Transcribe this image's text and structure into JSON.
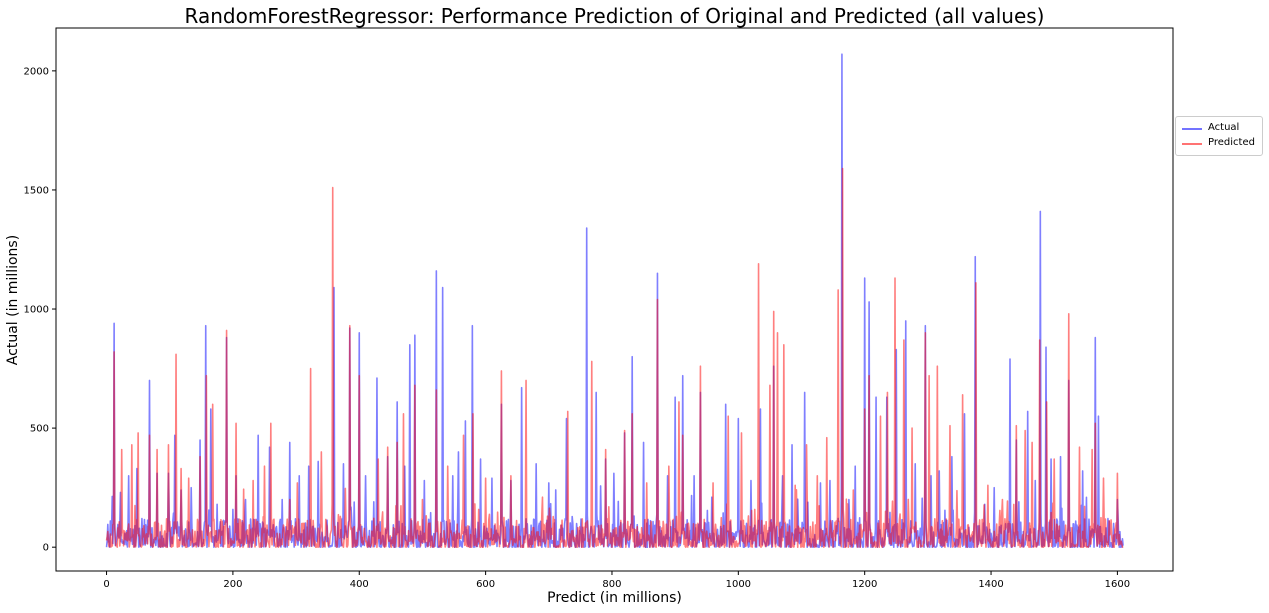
{
  "chart_data": {
    "type": "line",
    "title": "RandomForestRegressor: Performance Prediction of Original and Predicted (all values)",
    "xlabel": "Predict (in millions)",
    "ylabel": "Actual (in millions)",
    "xlim": [
      -80,
      1688
    ],
    "ylim": [
      -100,
      2180
    ],
    "x_ticks": [
      0,
      200,
      400,
      600,
      800,
      1000,
      1200,
      1400,
      1600
    ],
    "y_ticks": [
      0,
      500,
      1000,
      1500,
      2000
    ],
    "legend_placement": "right, outside plot",
    "baseline_max": 120,
    "series_length": 1610,
    "series": [
      {
        "name": "Actual",
        "color": "#0000ff",
        "peaks": [
          [
            12,
            940
          ],
          [
            22,
            230
          ],
          [
            35,
            300
          ],
          [
            48,
            330
          ],
          [
            68,
            700
          ],
          [
            80,
            310
          ],
          [
            98,
            310
          ],
          [
            108,
            470
          ],
          [
            118,
            240
          ],
          [
            134,
            250
          ],
          [
            148,
            450
          ],
          [
            157,
            930
          ],
          [
            165,
            580
          ],
          [
            175,
            180
          ],
          [
            190,
            880
          ],
          [
            205,
            300
          ],
          [
            220,
            200
          ],
          [
            240,
            470
          ],
          [
            258,
            420
          ],
          [
            278,
            200
          ],
          [
            290,
            440
          ],
          [
            305,
            300
          ],
          [
            320,
            340
          ],
          [
            335,
            360
          ],
          [
            360,
            1090
          ],
          [
            375,
            350
          ],
          [
            385,
            920
          ],
          [
            400,
            900
          ],
          [
            410,
            300
          ],
          [
            428,
            710
          ],
          [
            445,
            380
          ],
          [
            460,
            610
          ],
          [
            472,
            340
          ],
          [
            480,
            850
          ],
          [
            488,
            890
          ],
          [
            503,
            280
          ],
          [
            522,
            1160
          ],
          [
            532,
            1090
          ],
          [
            548,
            300
          ],
          [
            557,
            400
          ],
          [
            568,
            530
          ],
          [
            579,
            930
          ],
          [
            592,
            370
          ],
          [
            610,
            290
          ],
          [
            625,
            600
          ],
          [
            640,
            280
          ],
          [
            657,
            670
          ],
          [
            680,
            350
          ],
          [
            700,
            270
          ],
          [
            728,
            540
          ],
          [
            760,
            1340
          ],
          [
            775,
            650
          ],
          [
            790,
            370
          ],
          [
            803,
            310
          ],
          [
            820,
            480
          ],
          [
            832,
            800
          ],
          [
            850,
            440
          ],
          [
            872,
            1150
          ],
          [
            888,
            300
          ],
          [
            900,
            630
          ],
          [
            912,
            720
          ],
          [
            930,
            300
          ],
          [
            940,
            650
          ],
          [
            958,
            210
          ],
          [
            980,
            600
          ],
          [
            1000,
            540
          ],
          [
            1020,
            280
          ],
          [
            1035,
            580
          ],
          [
            1056,
            760
          ],
          [
            1070,
            300
          ],
          [
            1085,
            430
          ],
          [
            1105,
            650
          ],
          [
            1130,
            270
          ],
          [
            1145,
            280
          ],
          [
            1164,
            2070
          ],
          [
            1175,
            200
          ],
          [
            1185,
            340
          ],
          [
            1200,
            1130
          ],
          [
            1207,
            1030
          ],
          [
            1218,
            630
          ],
          [
            1235,
            630
          ],
          [
            1250,
            830
          ],
          [
            1265,
            950
          ],
          [
            1280,
            350
          ],
          [
            1296,
            930
          ],
          [
            1305,
            300
          ],
          [
            1318,
            320
          ],
          [
            1338,
            380
          ],
          [
            1358,
            560
          ],
          [
            1375,
            1220
          ],
          [
            1390,
            180
          ],
          [
            1405,
            250
          ],
          [
            1430,
            790
          ],
          [
            1440,
            450
          ],
          [
            1458,
            570
          ],
          [
            1470,
            280
          ],
          [
            1478,
            1410
          ],
          [
            1487,
            840
          ],
          [
            1495,
            370
          ],
          [
            1510,
            380
          ],
          [
            1523,
            700
          ],
          [
            1545,
            320
          ],
          [
            1565,
            880
          ],
          [
            1570,
            550
          ],
          [
            1585,
            120
          ],
          [
            1600,
            200
          ]
        ]
      },
      {
        "name": "Predicted",
        "color": "#ff0000",
        "peaks": [
          [
            12,
            820
          ],
          [
            24,
            410
          ],
          [
            40,
            430
          ],
          [
            50,
            480
          ],
          [
            68,
            470
          ],
          [
            80,
            410
          ],
          [
            98,
            430
          ],
          [
            110,
            810
          ],
          [
            118,
            330
          ],
          [
            130,
            290
          ],
          [
            148,
            380
          ],
          [
            158,
            720
          ],
          [
            168,
            600
          ],
          [
            190,
            910
          ],
          [
            205,
            520
          ],
          [
            232,
            280
          ],
          [
            250,
            340
          ],
          [
            260,
            520
          ],
          [
            290,
            200
          ],
          [
            302,
            270
          ],
          [
            323,
            750
          ],
          [
            340,
            400
          ],
          [
            358,
            1510
          ],
          [
            385,
            930
          ],
          [
            400,
            720
          ],
          [
            430,
            370
          ],
          [
            445,
            420
          ],
          [
            460,
            440
          ],
          [
            470,
            560
          ],
          [
            488,
            680
          ],
          [
            500,
            200
          ],
          [
            522,
            660
          ],
          [
            540,
            340
          ],
          [
            565,
            470
          ],
          [
            580,
            560
          ],
          [
            600,
            290
          ],
          [
            625,
            740
          ],
          [
            640,
            300
          ],
          [
            664,
            700
          ],
          [
            690,
            210
          ],
          [
            730,
            570
          ],
          [
            768,
            780
          ],
          [
            790,
            410
          ],
          [
            820,
            490
          ],
          [
            832,
            560
          ],
          [
            855,
            270
          ],
          [
            872,
            1040
          ],
          [
            890,
            340
          ],
          [
            906,
            610
          ],
          [
            912,
            470
          ],
          [
            940,
            760
          ],
          [
            960,
            270
          ],
          [
            984,
            550
          ],
          [
            1005,
            480
          ],
          [
            1032,
            1190
          ],
          [
            1050,
            680
          ],
          [
            1056,
            990
          ],
          [
            1062,
            900
          ],
          [
            1072,
            850
          ],
          [
            1090,
            260
          ],
          [
            1108,
            430
          ],
          [
            1125,
            300
          ],
          [
            1140,
            460
          ],
          [
            1158,
            1080
          ],
          [
            1165,
            1590
          ],
          [
            1182,
            240
          ],
          [
            1200,
            580
          ],
          [
            1207,
            720
          ],
          [
            1225,
            550
          ],
          [
            1236,
            650
          ],
          [
            1248,
            1130
          ],
          [
            1262,
            870
          ],
          [
            1275,
            500
          ],
          [
            1296,
            900
          ],
          [
            1302,
            720
          ],
          [
            1315,
            760
          ],
          [
            1335,
            510
          ],
          [
            1355,
            640
          ],
          [
            1376,
            1110
          ],
          [
            1395,
            260
          ],
          [
            1418,
            200
          ],
          [
            1440,
            510
          ],
          [
            1454,
            490
          ],
          [
            1465,
            440
          ],
          [
            1477,
            870
          ],
          [
            1488,
            610
          ],
          [
            1500,
            370
          ],
          [
            1523,
            980
          ],
          [
            1540,
            420
          ],
          [
            1560,
            410
          ],
          [
            1565,
            520
          ],
          [
            1578,
            290
          ],
          [
            1600,
            310
          ]
        ]
      }
    ]
  },
  "legend": {
    "items": [
      {
        "label": "Actual",
        "color": "#0000ff"
      },
      {
        "label": "Predicted",
        "color": "#ff0000"
      }
    ]
  }
}
